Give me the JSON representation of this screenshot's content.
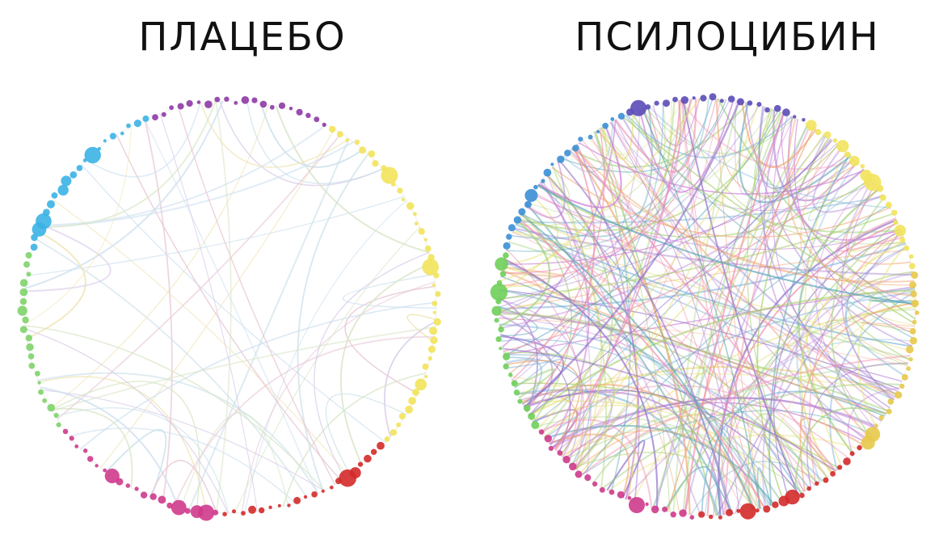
{
  "titles": {
    "left": "ПЛАЦЕБО",
    "right": "ПСИЛОЦИБИН"
  },
  "panels": {
    "left": {
      "density": "sparse",
      "edges": 55,
      "colors": [
        "#c9dfe8",
        "#d9e6c8",
        "#f0e6b8",
        "#e8c9d6",
        "#d8cbe8",
        "#cfe1f0"
      ]
    },
    "right": {
      "density": "dense",
      "edges": 260,
      "colors": [
        "#8e6cc9",
        "#7fb4d9",
        "#a8cf6a",
        "#c97ad6",
        "#f0a16a",
        "#e8e07a",
        "#5aa7b8",
        "#b58ad6",
        "#9fd17a",
        "#f08fb0"
      ]
    }
  },
  "node_palette": [
    "#8e3aa5",
    "#f2e35b",
    "#d42a2a",
    "#cf3a8c",
    "#7ed36a",
    "#3bb3e6",
    "#5b4bb8"
  ]
}
